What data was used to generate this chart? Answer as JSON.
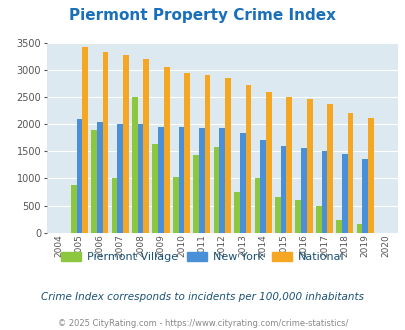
{
  "title": "Piermont Property Crime Index",
  "years": [
    2004,
    2005,
    2006,
    2007,
    2008,
    2009,
    2010,
    2011,
    2012,
    2013,
    2014,
    2015,
    2016,
    2017,
    2018,
    2019,
    2020
  ],
  "piermont": [
    0,
    880,
    1900,
    1000,
    2510,
    1640,
    1020,
    1430,
    1580,
    750,
    1000,
    650,
    610,
    490,
    240,
    160,
    0
  ],
  "new_york": [
    0,
    2090,
    2050,
    2000,
    2010,
    1950,
    1950,
    1930,
    1930,
    1830,
    1710,
    1600,
    1560,
    1510,
    1450,
    1360,
    0
  ],
  "national": [
    0,
    3420,
    3340,
    3270,
    3210,
    3050,
    2950,
    2900,
    2860,
    2730,
    2600,
    2500,
    2470,
    2380,
    2210,
    2110,
    0
  ],
  "bar_width": 0.28,
  "ylim": [
    0,
    3500
  ],
  "yticks": [
    0,
    500,
    1000,
    1500,
    2000,
    2500,
    3000,
    3500
  ],
  "color_piermont": "#8dc63f",
  "color_newyork": "#4a90d9",
  "color_national": "#f5a623",
  "bg_color": "#dce9f0",
  "title_color": "#1a6fba",
  "subtitle": "Crime Index corresponds to incidents per 100,000 inhabitants",
  "footer": "© 2025 CityRating.com - https://www.cityrating.com/crime-statistics/",
  "legend_labels": [
    "Piermont Village",
    "New York",
    "National"
  ],
  "legend_text_color": "#1a5276",
  "subtitle_color": "#1a5276",
  "footer_color": "#888888"
}
